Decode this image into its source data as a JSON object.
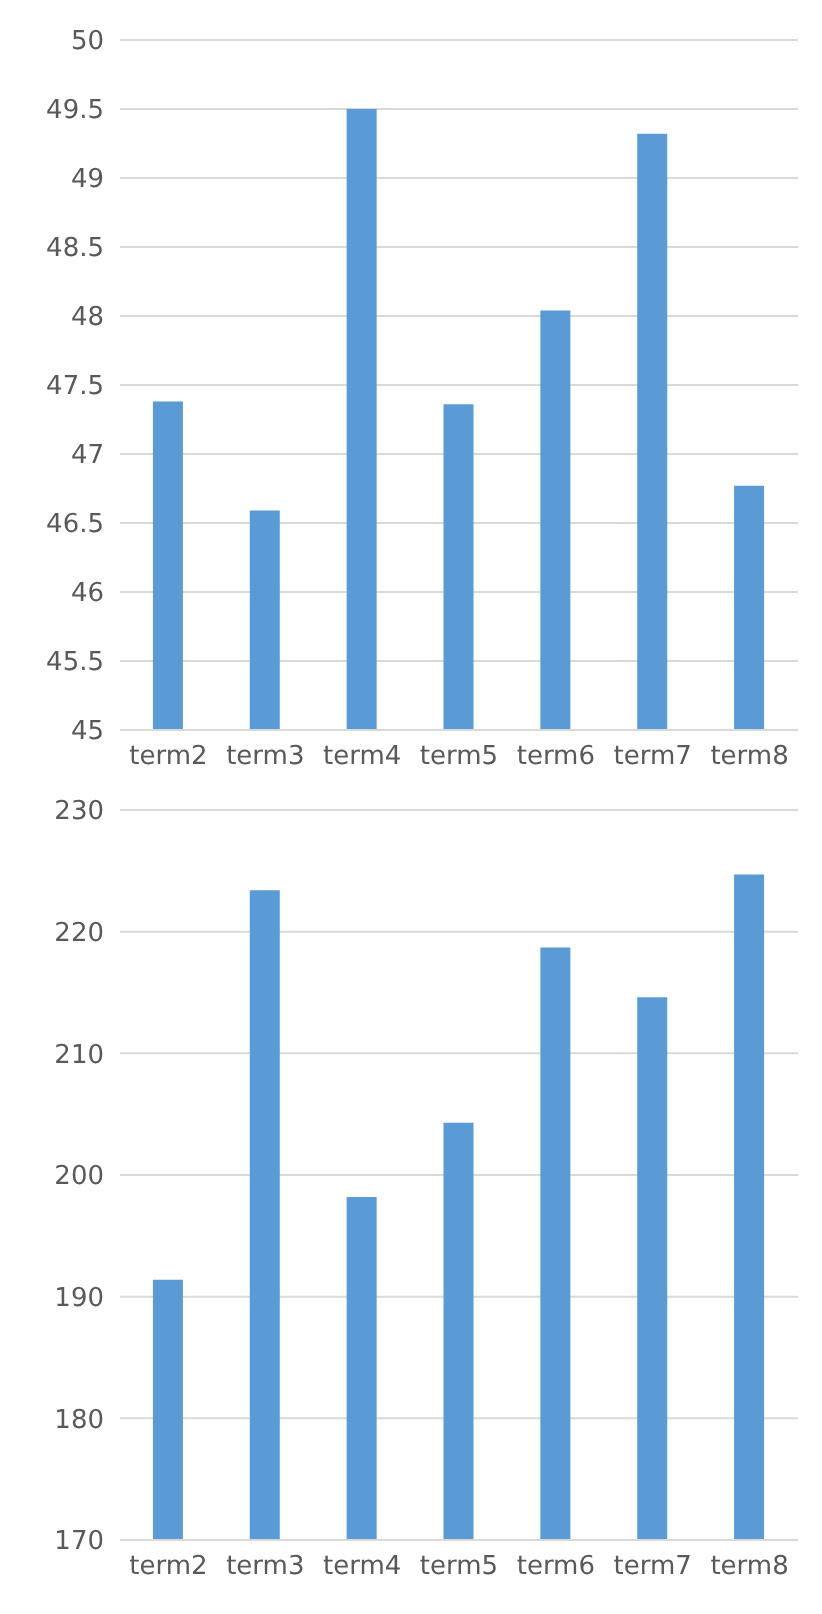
{
  "chart_data": [
    {
      "type": "bar",
      "categories": [
        "term2",
        "term3",
        "term4",
        "term5",
        "term6",
        "term7",
        "term8"
      ],
      "values": [
        47.38,
        46.59,
        49.5,
        47.36,
        48.04,
        49.32,
        46.77
      ],
      "color": "#5b9bd5",
      "ylim": [
        45,
        50
      ],
      "yticks": [
        45,
        45.5,
        46,
        46.5,
        47,
        47.5,
        48,
        48.5,
        49,
        49.5,
        50
      ],
      "grid": "y"
    },
    {
      "type": "bar",
      "categories": [
        "term2",
        "term3",
        "term4",
        "term5",
        "term6",
        "term7",
        "term8"
      ],
      "values": [
        191.4,
        223.4,
        198.2,
        204.3,
        218.7,
        214.6,
        224.7
      ],
      "color": "#5b9bd5",
      "ylim": [
        170,
        230
      ],
      "yticks": [
        170,
        180,
        190,
        200,
        210,
        220,
        230
      ],
      "grid": "y"
    }
  ]
}
